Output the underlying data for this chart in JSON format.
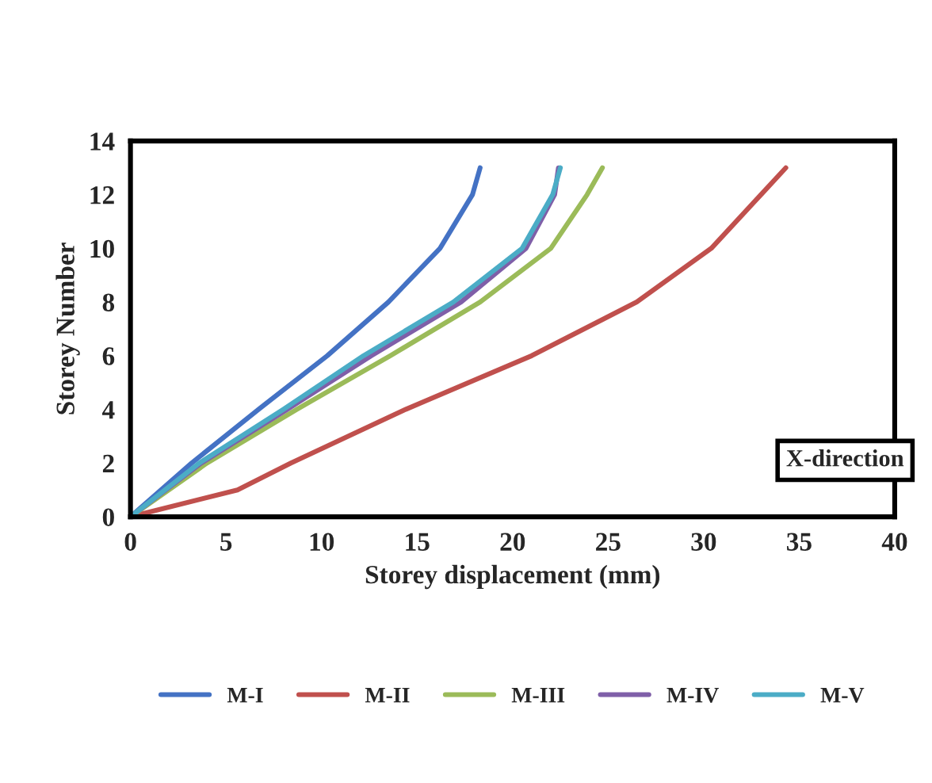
{
  "chart_data": {
    "type": "line",
    "xlabel": "Storey displacement (mm)",
    "ylabel": "Storey Number",
    "annotations": [
      "X-direction"
    ],
    "xlim": [
      0,
      40
    ],
    "xticks": [
      0,
      5,
      10,
      15,
      20,
      25,
      30,
      35,
      40
    ],
    "ylim": [
      0,
      14
    ],
    "yticks": [
      0,
      2,
      4,
      6,
      8,
      10,
      12,
      14
    ],
    "grid": false,
    "legend": "bottom",
    "marker": "none",
    "line_style": "solid",
    "series": [
      {
        "name": "M-I",
        "color": "#4472c4",
        "x": [
          0,
          3.2,
          6.7,
          10.3,
          13.5,
          16.2,
          17.9,
          18.3
        ],
        "values": [
          0,
          2,
          4,
          6,
          8,
          10,
          12,
          13
        ]
      },
      {
        "name": "M-II",
        "color": "#c0504d",
        "x": [
          0,
          5.6,
          8.4,
          14.4,
          21.0,
          26.5,
          30.4,
          33.0,
          34.3
        ],
        "values": [
          0,
          1,
          2,
          4,
          6,
          8,
          10,
          12,
          13
        ]
      },
      {
        "name": "M-III",
        "color": "#9bbb59",
        "x": [
          0,
          4.0,
          8.7,
          13.6,
          18.3,
          22.0,
          23.9,
          24.7
        ],
        "values": [
          0,
          2,
          4,
          6,
          8,
          10,
          12,
          13
        ]
      },
      {
        "name": "M-IV",
        "color": "#7f5fa8",
        "x": [
          0,
          3.7,
          8.2,
          12.6,
          17.3,
          20.7,
          22.2,
          22.4
        ],
        "values": [
          0,
          2,
          4,
          6,
          8,
          10,
          12,
          13
        ]
      },
      {
        "name": "M-V",
        "color": "#4bacc6",
        "x": [
          0,
          3.6,
          8.0,
          12.2,
          16.9,
          20.5,
          22.1,
          22.5
        ],
        "values": [
          0,
          2,
          4,
          6,
          8,
          10,
          12,
          13
        ]
      }
    ]
  }
}
